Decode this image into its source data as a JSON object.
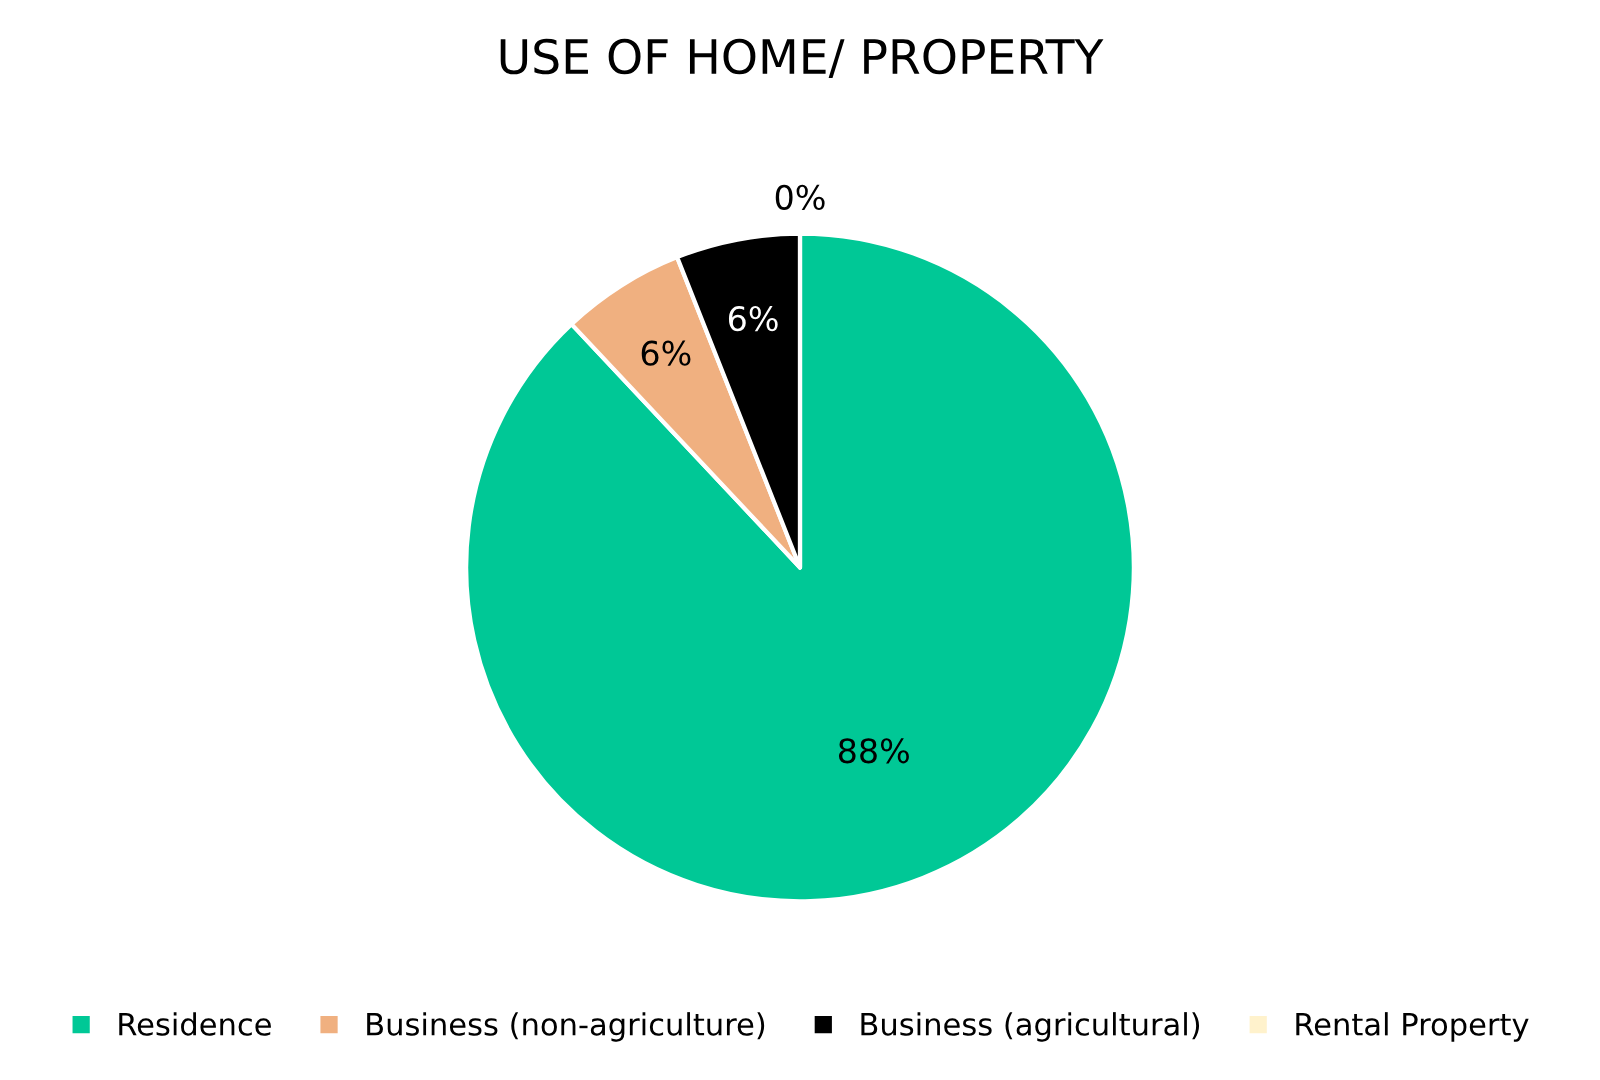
{
  "chart_data": {
    "type": "pie",
    "title": "USE OF HOME/ PROPERTY",
    "categories": [
      "Residence",
      "Business (non-agriculture)",
      "Business (agricultural)",
      "Rental Property"
    ],
    "values": [
      88,
      6,
      6,
      0
    ],
    "colors": [
      "#00c896",
      "#f0b080",
      "#000000",
      "#fff2cc"
    ],
    "value_labels": [
      "88%",
      "6%",
      "6%",
      "0%"
    ],
    "legend": "bottom"
  }
}
